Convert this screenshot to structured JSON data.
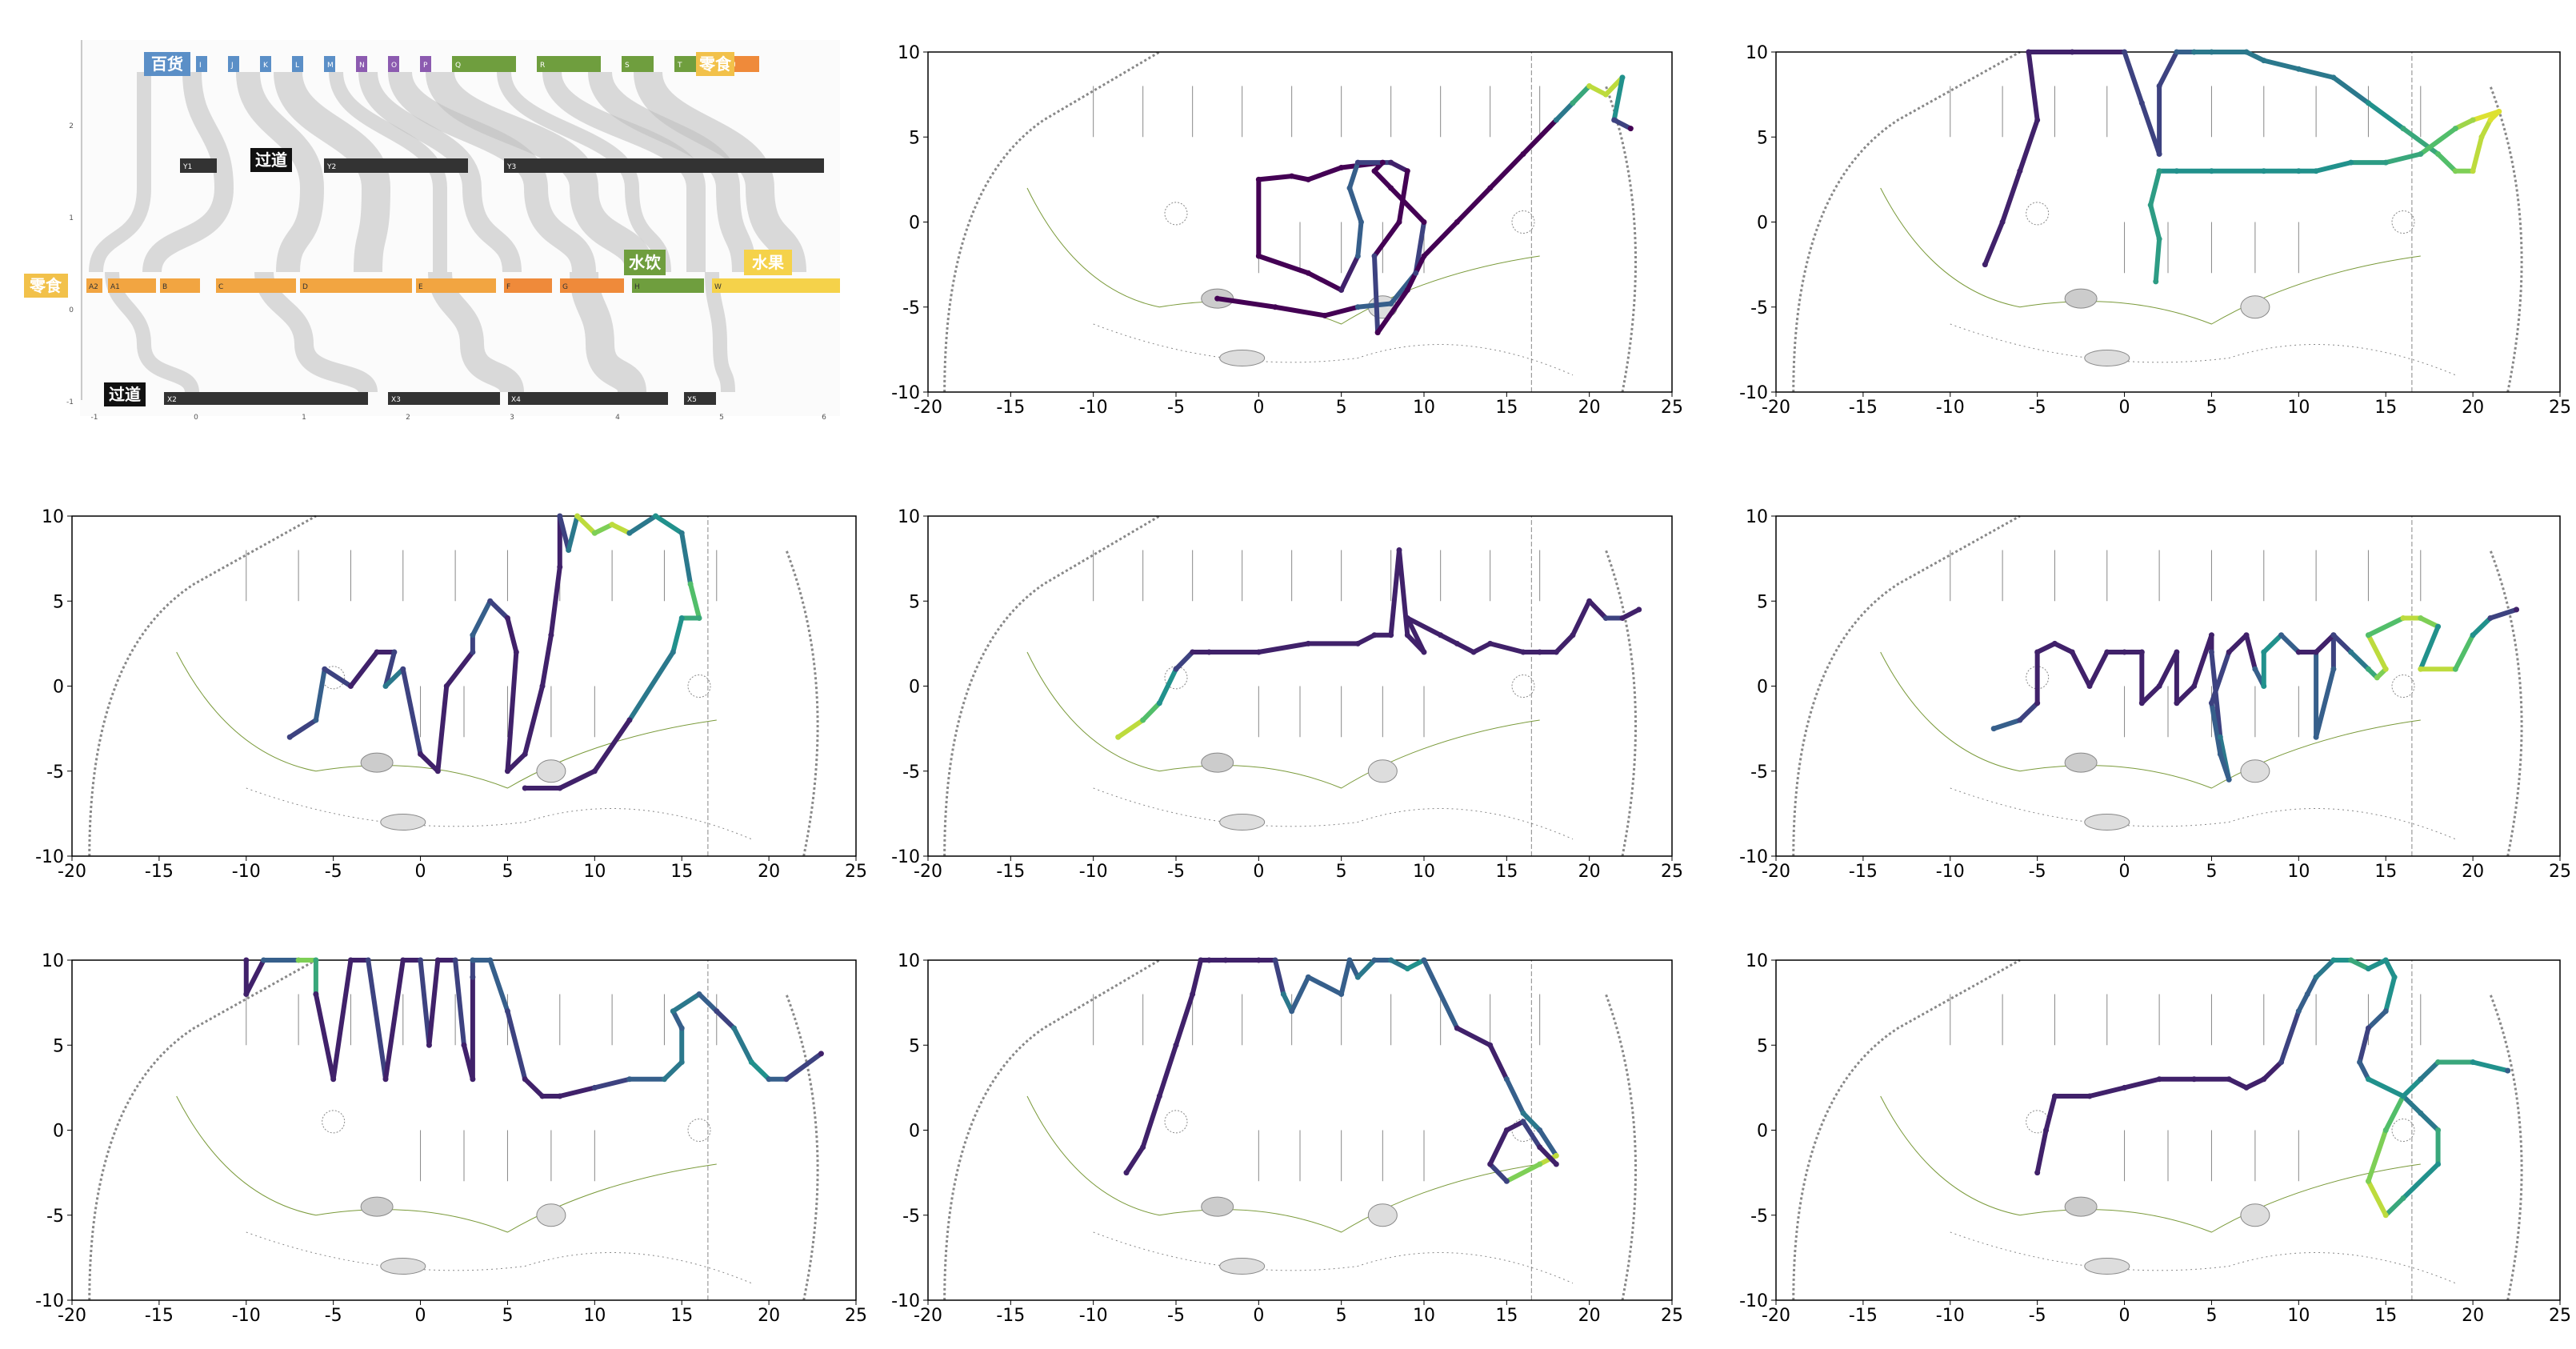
{
  "sankey": {
    "row_labels": {
      "top_left": "百货",
      "top_right": "零食",
      "mid_left": "零食",
      "aisle_upper": "过道",
      "aisle_lower": "过道",
      "drink": "水饮",
      "fruit": "水果"
    },
    "top_bars": [
      "I",
      "J",
      "K",
      "L",
      "M",
      "N",
      "O",
      "P",
      "Q",
      "R",
      "S",
      "T",
      "U"
    ],
    "top_bar_colors": [
      "#5b8fc7",
      "#5b8fc7",
      "#5b8fc7",
      "#5b8fc7",
      "#5b8fc7",
      "#8c5bb0",
      "#8c5bb0",
      "#8c5bb0",
      "#6f9e3e",
      "#6f9e3e",
      "#6f9e3e",
      "#6f9e3e",
      "#ef8a3a"
    ],
    "y_bars": [
      "Y1",
      "Y2",
      "Y3"
    ],
    "a_bars": [
      "A2",
      "A1",
      "B",
      "C",
      "D",
      "E",
      "F",
      "G",
      "H",
      "W"
    ],
    "a_bar_colors": [
      "#f2a541",
      "#f2a541",
      "#f2a541",
      "#f2a541",
      "#f2a541",
      "#f2a541",
      "#ef8a3a",
      "#ef8a3a",
      "#6f9e3e",
      "#f5d24a"
    ],
    "x_bars": [
      "X2",
      "X3",
      "X4",
      "X5"
    ],
    "y_ticks": [
      "2",
      "1",
      "0",
      "-1"
    ],
    "x_ticks": [
      "-1",
      "0",
      "1",
      "2",
      "3",
      "4",
      "5",
      "6"
    ]
  },
  "chart_data": [
    {
      "type": "line",
      "xlim": [
        -20,
        25
      ],
      "ylim": [
        -10,
        10
      ],
      "xticks": [
        "-20",
        "-15",
        "-10",
        "-5",
        "0",
        "5",
        "10",
        "15",
        "20",
        "25"
      ],
      "yticks": [
        "10",
        "5",
        "0",
        "-5",
        "-10"
      ],
      "x": [
        -2.5,
        1,
        4,
        6,
        8,
        9.5,
        10,
        8,
        7,
        7.5,
        5,
        3,
        2,
        0,
        0,
        3,
        5,
        6,
        6.2,
        5.5,
        6,
        8,
        9,
        8.5,
        7,
        7.2,
        9,
        10,
        12,
        14,
        16,
        18,
        19,
        20,
        21,
        22,
        21.5,
        22.5
      ],
      "y": [
        -4.5,
        -5,
        -5.5,
        -5,
        -4.8,
        -3,
        0,
        2,
        3,
        3.5,
        3.2,
        2.5,
        2.7,
        2.5,
        -2,
        -3,
        -4,
        -2,
        0,
        2,
        3.5,
        3.5,
        3,
        0,
        -2,
        -6.5,
        -4,
        -2,
        0,
        2,
        4,
        6,
        7,
        8,
        7.5,
        8.5,
        6,
        5.5
      ],
      "c": [
        0,
        0,
        0,
        0.3,
        0.3,
        0.2,
        0,
        0,
        0,
        0,
        0,
        0,
        0,
        0,
        0,
        0,
        0.1,
        0.3,
        0.3,
        0.3,
        0.2,
        0.1,
        0,
        0,
        0.2,
        0,
        0,
        0,
        0,
        0,
        0,
        0.4,
        0.6,
        0.9,
        0.9,
        0.5,
        0.2,
        0
      ]
    },
    {
      "type": "line",
      "xlim": [
        -20,
        25
      ],
      "ylim": [
        -10,
        10
      ],
      "xticks": [
        "-20",
        "-15",
        "-10",
        "-5",
        "0",
        "5",
        "10",
        "15",
        "20",
        "25"
      ],
      "yticks": [
        "10",
        "5",
        "0",
        "-5",
        "-10"
      ],
      "x": [
        -8,
        -7,
        -6,
        -5,
        -5.5,
        -3,
        0,
        1,
        2,
        2,
        3,
        4,
        5,
        7,
        8,
        10,
        12,
        14,
        16,
        18,
        19,
        20,
        20.5,
        21,
        21.5,
        20,
        19,
        17,
        15,
        13,
        11,
        10,
        8,
        5,
        3,
        2,
        1.5,
        2,
        1.8
      ],
      "y": [
        -2.5,
        0,
        3,
        6,
        10,
        10,
        10,
        7,
        4,
        8,
        10,
        10,
        10,
        10,
        9.5,
        9,
        8.5,
        7,
        5.5,
        4,
        3,
        3,
        5,
        6,
        6.5,
        6,
        5.5,
        4,
        3.5,
        3.5,
        3,
        3,
        3,
        3,
        3,
        3,
        1,
        -1,
        -3.5
      ],
      "c": [
        0.1,
        0.1,
        0.1,
        0.1,
        0.1,
        0.1,
        0.2,
        0.2,
        0.2,
        0.2,
        0.3,
        0.4,
        0.4,
        0.4,
        0.4,
        0.4,
        0.4,
        0.5,
        0.6,
        0.7,
        0.8,
        0.9,
        0.9,
        0.95,
        0.95,
        0.85,
        0.7,
        0.6,
        0.55,
        0.5,
        0.5,
        0.5,
        0.5,
        0.5,
        0.5,
        0.55,
        0.55,
        0.55,
        0.55
      ]
    },
    {
      "type": "line",
      "xlim": [
        -20,
        25
      ],
      "ylim": [
        -10,
        10
      ],
      "xticks": [
        "-20",
        "-15",
        "-10",
        "-5",
        "0",
        "5",
        "10",
        "15",
        "20",
        "25"
      ],
      "yticks": [
        "10",
        "5",
        "0",
        "-5",
        "-10"
      ],
      "x": [
        -7.5,
        -6,
        -5.5,
        -4,
        -2.5,
        -1.5,
        -2,
        -1,
        0,
        1,
        1.5,
        3,
        3,
        4,
        5,
        5.5,
        5,
        6,
        7,
        7.5,
        8,
        8,
        8.5,
        9,
        10,
        11,
        12,
        13.5,
        15,
        15.5,
        16,
        15,
        14.5,
        12,
        10,
        8,
        6
      ],
      "y": [
        -3,
        -2,
        1,
        0,
        2,
        2,
        0,
        1,
        -4,
        -5,
        0,
        2,
        3,
        5,
        4,
        2,
        -5,
        -4,
        0,
        3,
        7,
        10,
        8,
        10,
        9,
        9.5,
        9,
        10,
        9,
        6,
        4,
        4,
        2,
        -2,
        -5,
        -6,
        -6
      ],
      "c": [
        0.2,
        0.3,
        0.2,
        0.1,
        0.1,
        0.2,
        0.4,
        0.2,
        0.1,
        0.1,
        0.1,
        0.2,
        0.3,
        0.2,
        0.1,
        0.1,
        0.1,
        0.1,
        0.1,
        0.1,
        0.1,
        0.2,
        0.4,
        0.9,
        0.8,
        0.9,
        0.4,
        0.5,
        0.4,
        0.7,
        0.6,
        0.5,
        0.4,
        0.1,
        0.1,
        0.1,
        0.1
      ]
    },
    {
      "type": "line",
      "xlim": [
        -20,
        25
      ],
      "ylim": [
        -10,
        10
      ],
      "xticks": [
        "-20",
        "-15",
        "-10",
        "-5",
        "0",
        "5",
        "10",
        "15",
        "20",
        "25"
      ],
      "yticks": [
        "10",
        "5",
        "0",
        "-5",
        "-10"
      ],
      "x": [
        -8.5,
        -7,
        -6,
        -5,
        -4,
        -3,
        0,
        3,
        6,
        7,
        8,
        8.5,
        9,
        10,
        9,
        11,
        12,
        13,
        14,
        16,
        17,
        18,
        19,
        20,
        21,
        22,
        23
      ],
      "y": [
        -3,
        -2,
        -1,
        1,
        2,
        2,
        2,
        2.5,
        2.5,
        3,
        3,
        8,
        3,
        2,
        4,
        3,
        2.5,
        2,
        2.5,
        2,
        2,
        2,
        3,
        5,
        4,
        4,
        4.5
      ],
      "c": [
        0.9,
        0.7,
        0.5,
        0.2,
        0.1,
        0.1,
        0.1,
        0.1,
        0.1,
        0.1,
        0.1,
        0.1,
        0.1,
        0.1,
        0.1,
        0.1,
        0.1,
        0.1,
        0.1,
        0.1,
        0.1,
        0.1,
        0.1,
        0.1,
        0.2,
        0.1,
        0.1
      ]
    },
    {
      "type": "line",
      "xlim": [
        -20,
        25
      ],
      "ylim": [
        -10,
        10
      ],
      "xticks": [
        "-20",
        "-15",
        "-10",
        "-5",
        "0",
        "5",
        "10",
        "15",
        "20",
        "25"
      ],
      "yticks": [
        "10",
        "5",
        "0",
        "-5",
        "-10"
      ],
      "x": [
        -7.5,
        -6,
        -5,
        -5,
        -4,
        -3,
        -2,
        -1,
        0,
        1,
        1,
        2,
        3,
        3,
        4,
        5,
        5,
        5.5,
        6,
        5.5,
        5,
        6,
        7,
        7.5,
        8,
        8,
        9,
        10,
        11,
        12,
        12,
        11,
        11,
        12,
        13,
        14,
        14.5,
        15,
        14,
        16,
        17,
        18,
        17,
        19,
        20,
        21,
        22.5
      ],
      "y": [
        -2.5,
        -2,
        -1,
        2,
        2.5,
        2,
        0,
        2,
        2,
        2,
        -1,
        0,
        2,
        -1,
        0,
        3,
        2,
        -3,
        -5.5,
        -4,
        -1,
        2,
        3,
        1,
        0,
        2,
        3,
        2,
        2,
        3,
        1,
        -3,
        2,
        3,
        2,
        1,
        0.5,
        1,
        3,
        4,
        4,
        3.5,
        1,
        1,
        3,
        4,
        4.5
      ],
      "c": [
        0.3,
        0.2,
        0.1,
        0.1,
        0.1,
        0.1,
        0.1,
        0.1,
        0.1,
        0.1,
        0.1,
        0.1,
        0.1,
        0.1,
        0.1,
        0.1,
        0.2,
        0.4,
        0.3,
        0.3,
        0.2,
        0.1,
        0.1,
        0.3,
        0.5,
        0.5,
        0.3,
        0.1,
        0.1,
        0.2,
        0.3,
        0.3,
        0.1,
        0.2,
        0.4,
        0.6,
        0.8,
        0.9,
        0.7,
        0.9,
        0.8,
        0.5,
        0.9,
        0.7,
        0.5,
        0.2,
        0.1
      ]
    },
    {
      "type": "line",
      "xlim": [
        -20,
        25
      ],
      "ylim": [
        -10,
        10
      ],
      "xticks": [
        "-20",
        "-15",
        "-10",
        "-5",
        "0",
        "5",
        "10",
        "15",
        "20",
        "25"
      ],
      "yticks": [
        "10",
        "5",
        "0",
        "-5",
        "-10"
      ],
      "x": [
        -10,
        -10,
        -9,
        -7,
        -6,
        -6,
        -5,
        -4,
        -3,
        -2,
        -1,
        0,
        0.5,
        1,
        2,
        2.5,
        3,
        3,
        3,
        4,
        5,
        6,
        7,
        8,
        10,
        12,
        14,
        15,
        15,
        14.5,
        16,
        17,
        18,
        19,
        20,
        21,
        23
      ],
      "y": [
        10,
        8,
        10,
        10,
        10,
        8,
        3,
        10,
        10,
        3,
        10,
        10,
        5,
        10,
        10,
        5,
        3,
        9,
        10,
        10,
        7,
        3,
        2,
        2,
        2.5,
        3,
        3,
        4,
        6,
        7,
        8,
        7,
        6,
        4,
        3,
        3,
        4.5
      ],
      "c": [
        0.1,
        0.1,
        0.3,
        0.8,
        0.6,
        0.1,
        0.1,
        0.1,
        0.2,
        0.1,
        0.1,
        0.2,
        0.1,
        0.1,
        0.2,
        0.1,
        0.1,
        0.2,
        0.3,
        0.3,
        0.2,
        0.1,
        0.1,
        0.1,
        0.2,
        0.3,
        0.4,
        0.4,
        0.3,
        0.4,
        0.3,
        0.2,
        0.4,
        0.5,
        0.3,
        0.2,
        0.1
      ]
    },
    {
      "type": "line",
      "xlim": [
        -20,
        25
      ],
      "ylim": [
        -10,
        10
      ],
      "xticks": [
        "-20",
        "-15",
        "-10",
        "-5",
        "0",
        "5",
        "10",
        "15",
        "20",
        "25"
      ],
      "yticks": [
        "10",
        "5",
        "0",
        "-5",
        "-10"
      ],
      "x": [
        -8,
        -7,
        -6,
        -5,
        -4,
        -3.5,
        -3,
        -2,
        0,
        1,
        1.5,
        2,
        3,
        5,
        5.5,
        6,
        7,
        8,
        9,
        10,
        12,
        14,
        15,
        16,
        17,
        18,
        17,
        15,
        14,
        15,
        16,
        17,
        18
      ],
      "y": [
        -2.5,
        -1,
        2,
        5,
        8,
        10,
        10,
        10,
        10,
        10,
        8,
        7,
        9,
        8,
        10,
        9,
        10,
        10,
        9.5,
        10,
        6,
        5,
        3,
        1,
        0,
        -1.5,
        -2,
        -3,
        -2,
        0,
        0.5,
        -1,
        -2
      ],
      "c": [
        0.1,
        0.1,
        0.1,
        0.1,
        0.1,
        0.1,
        0.1,
        0.1,
        0.1,
        0.2,
        0.4,
        0.3,
        0.3,
        0.3,
        0.3,
        0.4,
        0.3,
        0.4,
        0.5,
        0.3,
        0.1,
        0.1,
        0.3,
        0.4,
        0.3,
        0.9,
        0.8,
        0.2,
        0.1,
        0.1,
        0.2,
        0.1,
        0.1
      ]
    },
    {
      "type": "line",
      "xlim": [
        -20,
        25
      ],
      "ylim": [
        -10,
        10
      ],
      "xticks": [
        "-20",
        "-15",
        "-10",
        "-5",
        "0",
        "5",
        "10",
        "15",
        "20",
        "25"
      ],
      "yticks": [
        "10",
        "5",
        "0",
        "-5",
        "-10"
      ],
      "x": [
        -5,
        -4.5,
        -4,
        -2,
        0,
        2,
        4,
        6,
        7,
        8,
        9,
        10,
        10.5,
        11,
        12,
        13,
        14,
        15,
        15.5,
        15,
        14,
        13.5,
        14,
        16,
        17,
        18,
        18,
        16,
        15,
        14,
        15,
        16,
        17,
        18,
        20,
        22
      ],
      "y": [
        -2.5,
        0,
        2,
        2,
        2.5,
        3,
        3,
        3,
        2.5,
        3,
        4,
        7,
        8,
        9,
        10,
        10,
        9.5,
        10,
        9,
        7,
        6,
        4,
        3,
        2,
        1,
        0,
        -2,
        -4,
        -5,
        -3,
        0,
        2,
        3,
        4,
        4,
        3.5
      ],
      "c": [
        0.1,
        0.1,
        0.1,
        0.1,
        0.1,
        0.1,
        0.1,
        0.1,
        0.1,
        0.1,
        0.2,
        0.3,
        0.3,
        0.4,
        0.5,
        0.6,
        0.5,
        0.5,
        0.5,
        0.3,
        0.2,
        0.3,
        0.5,
        0.4,
        0.4,
        0.6,
        0.5,
        0.6,
        0.9,
        0.8,
        0.7,
        0.5,
        0.4,
        0.6,
        0.5,
        0.3
      ]
    }
  ]
}
